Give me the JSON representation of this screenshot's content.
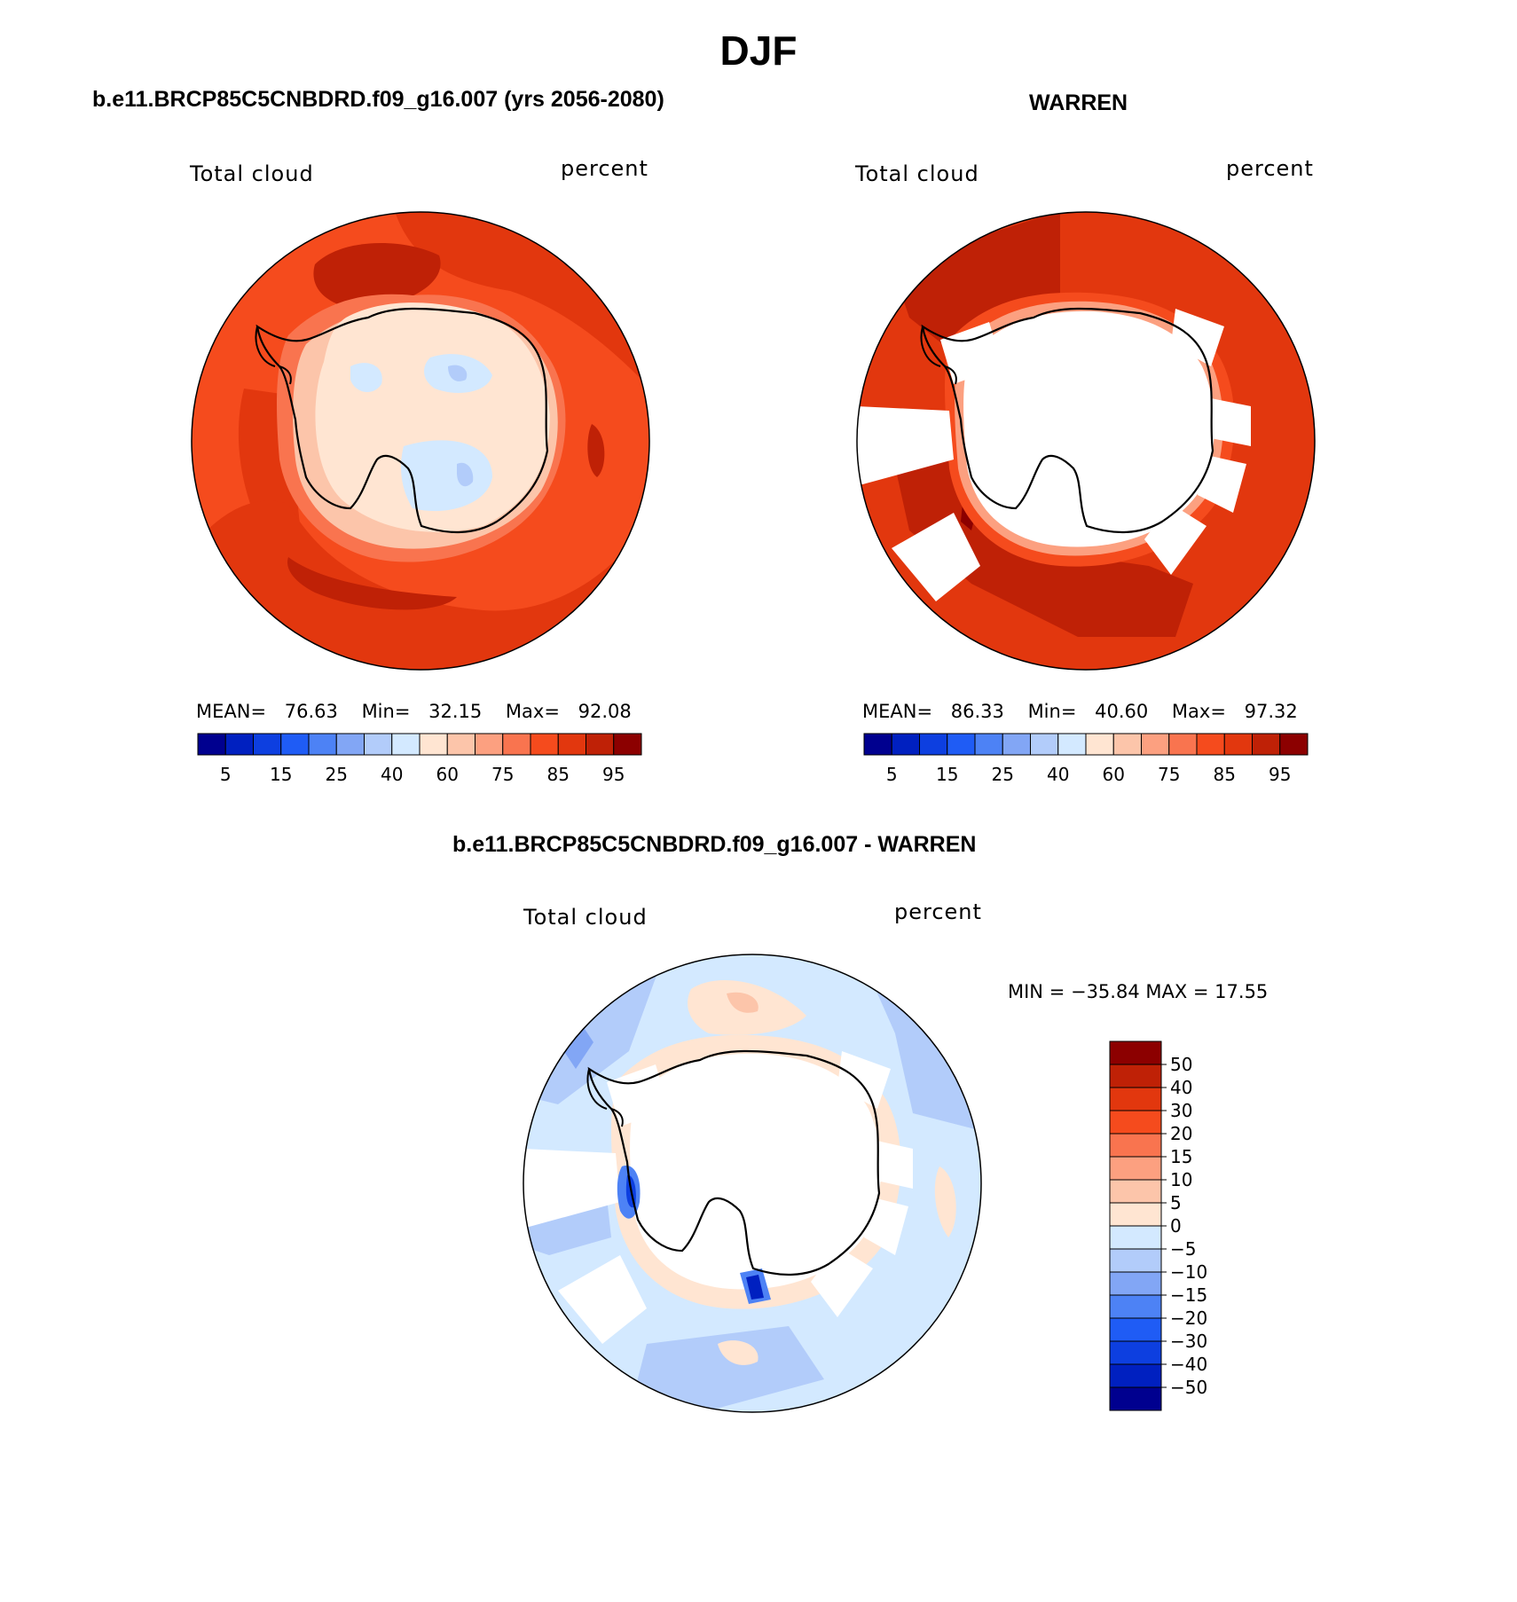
{
  "season": "DJF",
  "colors": {
    "ocean_left": "#e2370e",
    "ocean_right": "#e2370e",
    "diff_bg": "#d3e9ff"
  },
  "panels": {
    "left": {
      "title": "b.e11.BRCP85C5CNBDRD.f09_g16.007 (yrs 2056-2080)",
      "variable": "Total cloud",
      "units": "percent",
      "stats": {
        "mean_label": "MEAN=",
        "mean": "76.63",
        "min_label": "Min=",
        "min": "32.15",
        "max_label": "Max=",
        "max": "92.08"
      }
    },
    "right": {
      "title": "WARREN",
      "variable": "Total cloud",
      "units": "percent",
      "stats": {
        "mean_label": "MEAN=",
        "mean": "86.33",
        "min_label": "Min=",
        "min": "40.60",
        "max_label": "Max=",
        "max": "97.32"
      }
    },
    "diff": {
      "title": "b.e11.BRCP85C5CNBDRD.f09_g16.007 - WARREN",
      "variable": "Total cloud",
      "units": "percent",
      "minmax": "MIN = −35.84 MAX =  17.55"
    }
  },
  "colorbar_horizontal": {
    "colors": [
      "#00008f",
      "#0020c0",
      "#0d3fe0",
      "#1f5cf5",
      "#4d82f5",
      "#82a6f5",
      "#b2ccfa",
      "#d3e9ff",
      "#ffe5d2",
      "#fcc5aa",
      "#fca080",
      "#f9744f",
      "#f54b1d",
      "#e2370e",
      "#bf2106",
      "#8c0000"
    ],
    "labels": [
      "5",
      "15",
      "25",
      "40",
      "60",
      "75",
      "85",
      "95"
    ]
  },
  "colorbar_vertical": {
    "colors": [
      "#8c0000",
      "#bf2106",
      "#e2370e",
      "#f54b1d",
      "#f9744f",
      "#fca080",
      "#fcc5aa",
      "#ffe5d2",
      "#d3e9ff",
      "#b2ccfa",
      "#82a6f5",
      "#4d82f5",
      "#1f5cf5",
      "#0d3fe0",
      "#0020c0",
      "#00008f"
    ],
    "labels": [
      "50",
      "40",
      "30",
      "20",
      "15",
      "10",
      "5",
      "0",
      "−5",
      "−10",
      "−15",
      "−20",
      "−30",
      "−40",
      "−50"
    ]
  }
}
